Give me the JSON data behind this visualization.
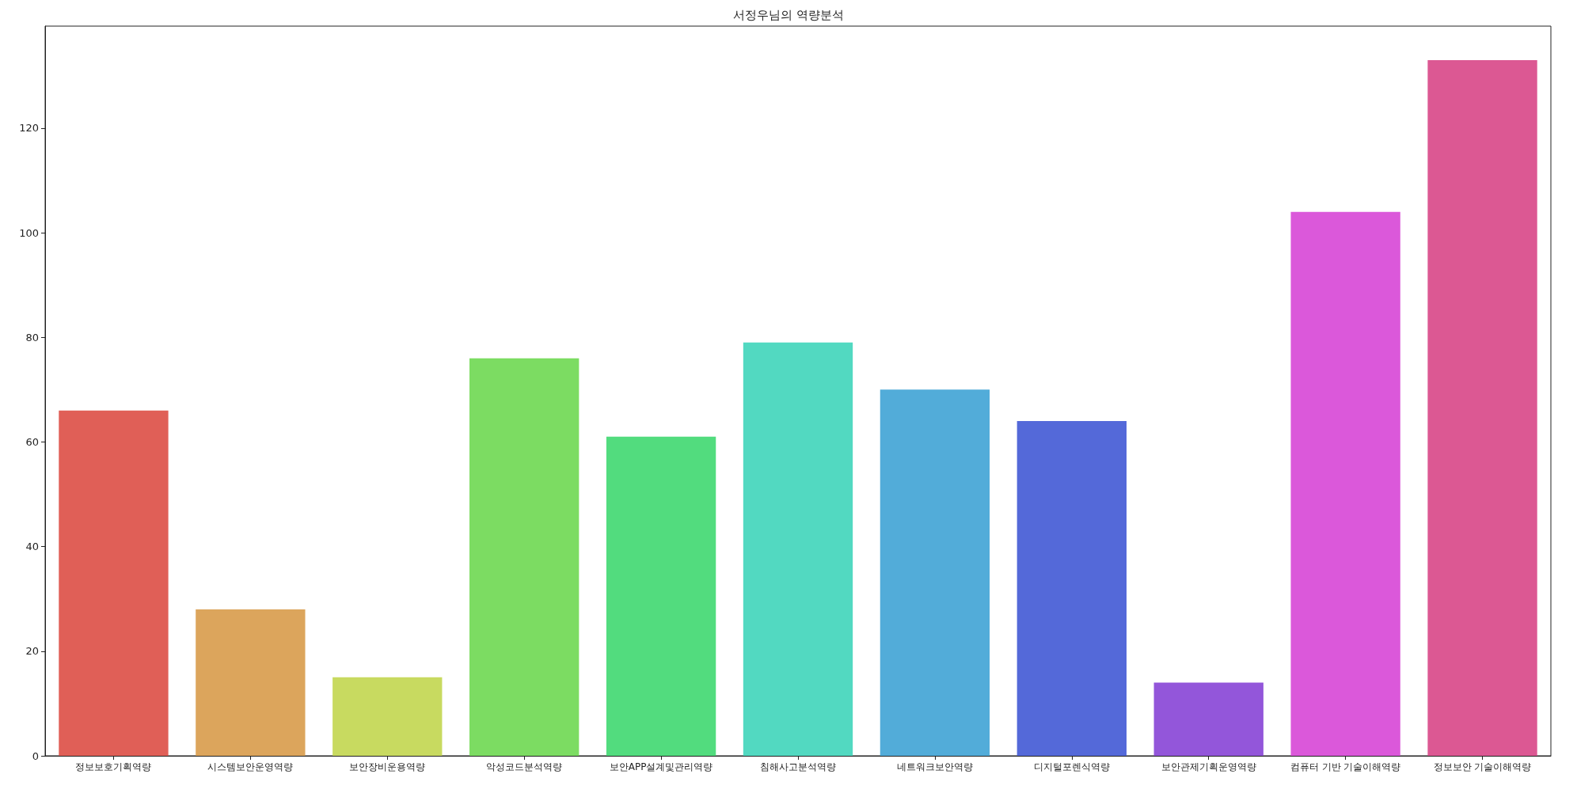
{
  "chart_data": {
    "type": "bar",
    "title": "서정우님의 역량분석",
    "categories": [
      "정보보호기획역량",
      "시스템보안운영역량",
      "보안장비운용역량",
      "악성코드분석역량",
      "보안APP설계및관리역량",
      "침해사고분석역량",
      "네트워크보안역량",
      "디지털포렌식역량",
      "보안관제기획운영역량",
      "컴퓨터 기반 기술이해역량",
      "정보보안 기술이해역량"
    ],
    "values": [
      66,
      28,
      15,
      76,
      61,
      79,
      70,
      64,
      14,
      104,
      133
    ],
    "colors": [
      "#e05f57",
      "#dca55c",
      "#c8da60",
      "#7cdc62",
      "#52dc7e",
      "#52d9c1",
      "#52acd9",
      "#5469d9",
      "#9356da",
      "#db58da",
      "#dc5893"
    ],
    "ylim": [
      0,
      139.5
    ],
    "yticks": [
      0,
      20,
      40,
      60,
      80,
      100,
      120
    ]
  }
}
